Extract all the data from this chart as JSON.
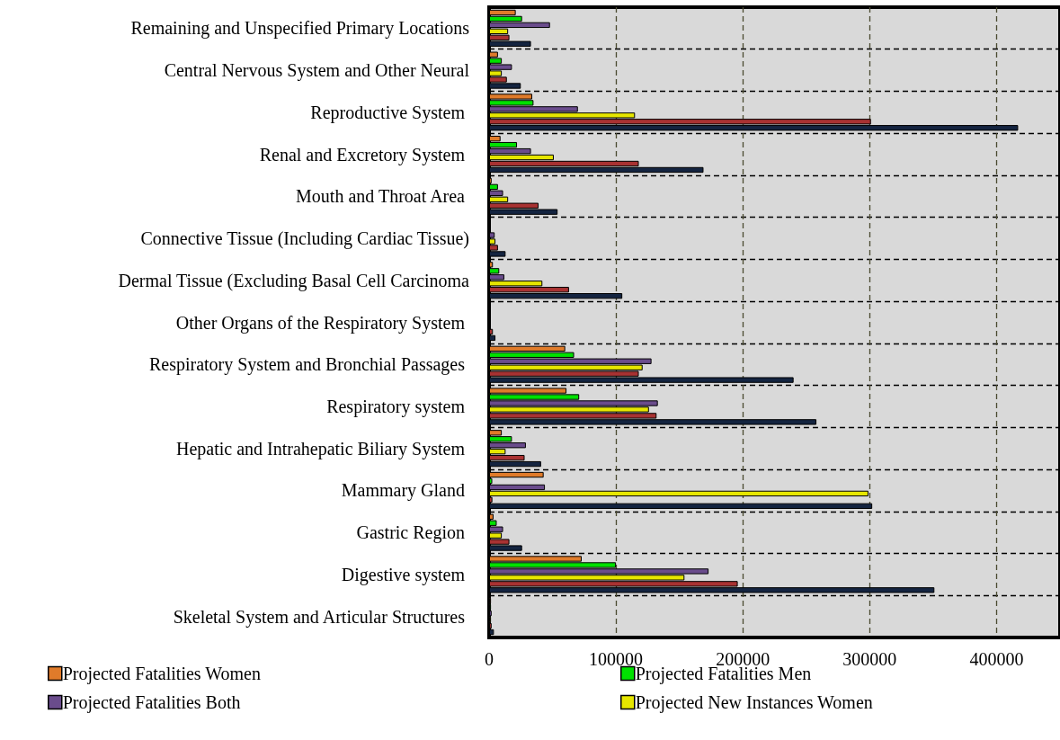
{
  "chart_data": {
    "type": "bar",
    "orientation": "horizontal",
    "categories": [
      "Remaining and Unspecified Primary Locations",
      "Central Nervous System and Other Neural",
      "Reproductive System ",
      "Renal and Excretory System ",
      "Mouth and Throat Area ",
      "Connective Tissue (Including Cardiac Tissue)",
      "Dermal Tissue (Excluding Basal Cell Carcinoma",
      "Other Organs of the Respiratory System ",
      "Respiratory System and Bronchial Passages ",
      "Respiratory system ",
      "Hepatic and Intrahepatic Biliary System ",
      "Mammary Gland ",
      "Gastric Region ",
      "Digestive system ",
      "Skeletal System and Articular Structures "
    ],
    "series": [
      {
        "name": "Projected Fatalities Women",
        "color": "#e07b2a",
        "values": [
          21000,
          7000,
          34000,
          9000,
          2000,
          null,
          3000,
          null,
          60000,
          61000,
          10000,
          43000,
          3500,
          73000,
          1500
        ]
      },
      {
        "name": "Projected Fatalities Men",
        "color": "#00e000",
        "values": [
          26000,
          10000,
          35000,
          22000,
          7000,
          null,
          8000,
          null,
          67000,
          71000,
          18000,
          2500,
          6000,
          100000,
          1500
        ]
      },
      {
        "name": "Projected Fatalities Both",
        "color": "#6a4c8c",
        "values": [
          48000,
          18000,
          70000,
          33000,
          11000,
          4400,
          12000,
          null,
          128000,
          133000,
          29000,
          44000,
          11000,
          173000,
          2000
        ]
      },
      {
        "name": "Projected New Instances Women",
        "color": "#e6e600",
        "values": [
          15000,
          10000,
          115000,
          51000,
          15000,
          5000,
          42000,
          null,
          121000,
          126000,
          13000,
          299000,
          10000,
          154000,
          1500
        ]
      },
      {
        "color": "#a83232",
        "values": [
          16000,
          14000,
          301000,
          118000,
          39000,
          7000,
          63000,
          3000,
          118000,
          132000,
          28000,
          2600,
          16000,
          196000,
          2000
        ]
      },
      {
        "color": "#142440",
        "values": [
          33000,
          25000,
          417000,
          169000,
          54000,
          13000,
          105000,
          5000,
          240000,
          258000,
          41000,
          302000,
          26000,
          351000,
          3800
        ]
      }
    ],
    "xlim": [
      0,
      450000
    ],
    "xticks": [
      0,
      100000,
      200000,
      300000,
      400000
    ],
    "grid": true,
    "legend": "bottom"
  }
}
